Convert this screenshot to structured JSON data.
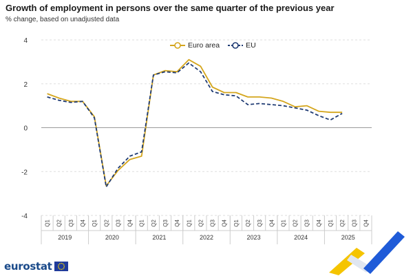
{
  "header": {
    "title": "Growth of employment in persons over the same quarter of the previous year",
    "subtitle": "% change, based on unadjusted data"
  },
  "branding": {
    "logo_text": "eurostat"
  },
  "colors": {
    "euro_area": "#d4a51c",
    "eu": "#1f3b73",
    "grid": "#dddddd",
    "axis": "#999999"
  },
  "chart_data": {
    "type": "line",
    "title": "Growth of employment in persons over the same quarter of the previous year",
    "subtitle": "% change, based on unadjusted data",
    "quarters": [
      "Q1",
      "Q2",
      "Q3",
      "Q4",
      "Q1",
      "Q2",
      "Q3",
      "Q4",
      "Q1",
      "Q2",
      "Q3",
      "Q4",
      "Q1",
      "Q2",
      "Q3",
      "Q4",
      "Q1",
      "Q2",
      "Q3",
      "Q4",
      "Q1",
      "Q2",
      "Q3",
      "Q4",
      "Q1",
      "Q2",
      "Q3",
      "Q4"
    ],
    "years": [
      "2019",
      "2020",
      "2021",
      "2022",
      "2023",
      "2024",
      "2025"
    ],
    "ylim": [
      -4,
      4
    ],
    "yticks": [
      "4",
      "2",
      "0",
      "-2",
      "-4"
    ],
    "legend_position": "top-center",
    "grid": "horizontal",
    "series": [
      {
        "name": "Euro area",
        "style": "solid",
        "values": [
          1.55,
          1.35,
          1.2,
          1.2,
          0.5,
          -2.65,
          -1.95,
          -1.45,
          -1.3,
          2.4,
          2.6,
          2.55,
          3.1,
          2.8,
          1.85,
          1.6,
          1.6,
          1.4,
          1.4,
          1.35,
          1.2,
          0.95,
          1.0,
          0.75,
          0.7,
          0.7,
          null,
          null
        ]
      },
      {
        "name": "EU",
        "style": "dashed",
        "values": [
          1.4,
          1.25,
          1.15,
          1.2,
          0.45,
          -2.7,
          -1.85,
          -1.3,
          -1.1,
          2.4,
          2.55,
          2.5,
          2.95,
          2.55,
          1.65,
          1.5,
          1.45,
          1.05,
          1.1,
          1.05,
          1.0,
          0.9,
          0.8,
          0.55,
          0.35,
          0.65,
          null,
          null
        ]
      }
    ]
  }
}
